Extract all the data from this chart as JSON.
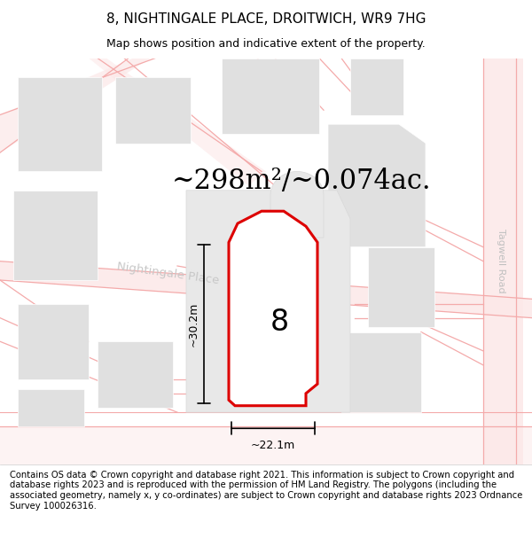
{
  "title": "8, NIGHTINGALE PLACE, DROITWICH, WR9 7HG",
  "subtitle": "Map shows position and indicative extent of the property.",
  "area_text": "~298m²/~0.074ac.",
  "label_8": "8",
  "dim_height": "~30.2m",
  "dim_width": "~22.1m",
  "street_label": "Nightingale Place",
  "road_label": "Tagwell Road",
  "copyright_text": "Contains OS data © Crown copyright and database right 2021. This information is subject to Crown copyright and database rights 2023 and is reproduced with the permission of HM Land Registry. The polygons (including the associated geometry, namely x, y co-ordinates) are subject to Crown copyright and database rights 2023 Ordnance Survey 100026316.",
  "bg_color": "#ffffff",
  "plot_color": "#ffffff",
  "plot_edge_color": "#dd0000",
  "building_color": "#e0e0e0",
  "road_color_light": "#fce8e8",
  "road_line_color": "#f4aaaa",
  "title_fontsize": 11,
  "subtitle_fontsize": 9,
  "area_fontsize": 22,
  "copyright_fontsize": 7.2,
  "street_label_color": "#c8c8c8",
  "road_label_color": "#c0c0c0"
}
